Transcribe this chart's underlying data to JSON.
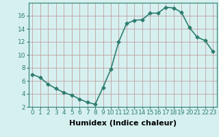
{
  "x": [
    0,
    1,
    2,
    3,
    4,
    5,
    6,
    7,
    8,
    9,
    10,
    11,
    12,
    13,
    14,
    15,
    16,
    17,
    18,
    19,
    20,
    21,
    22,
    23
  ],
  "y": [
    7,
    6.5,
    5.5,
    4.8,
    4.2,
    3.8,
    3.2,
    2.7,
    2.4,
    5,
    7.8,
    12,
    14.8,
    15.3,
    15.4,
    16.4,
    16.4,
    17.3,
    17.2,
    16.5,
    14.2,
    12.7,
    12.2,
    10.5
  ],
  "line_color": "#2e7d6e",
  "marker": "D",
  "marker_size": 2.5,
  "bg_color": "#d6f0f0",
  "grid_color": "#c0a0a0",
  "xlabel": "Humidex (Indice chaleur)",
  "ylim": [
    2,
    18
  ],
  "xlim": [
    -0.5,
    23.5
  ],
  "yticks": [
    2,
    4,
    6,
    8,
    10,
    12,
    14,
    16
  ],
  "xticks": [
    0,
    1,
    2,
    3,
    4,
    5,
    6,
    7,
    8,
    9,
    10,
    11,
    12,
    13,
    14,
    15,
    16,
    17,
    18,
    19,
    20,
    21,
    22,
    23
  ],
  "xtick_labels": [
    "0",
    "1",
    "2",
    "3",
    "4",
    "5",
    "6",
    "7",
    "8",
    "9",
    "10",
    "11",
    "12",
    "13",
    "14",
    "15",
    "16",
    "17",
    "18",
    "19",
    "20",
    "21",
    "22",
    "23"
  ],
  "line_width": 1.2,
  "xlabel_fontsize": 8,
  "tick_fontsize": 6.5
}
